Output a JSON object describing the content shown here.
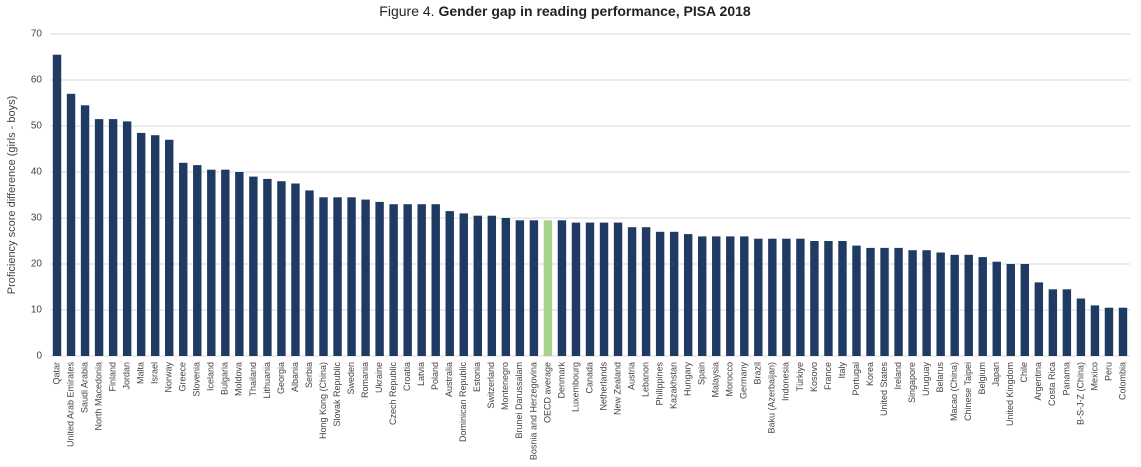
{
  "chart_data": {
    "type": "bar",
    "title_label": "Figure 4.",
    "title": "Gender gap in reading performance, PISA 2018",
    "y_label": "Proficiency score difference (girls - boys)",
    "categories": [
      "Qatar",
      "United Arab Emirates",
      "Saudi Arabia",
      "North Macedonia",
      "Finland",
      "Jordan",
      "Malta",
      "Israel",
      "Norway",
      "Greece",
      "Slovenia",
      "Iceland",
      "Bulgaria",
      "Moldova",
      "Thailand",
      "Lithuania",
      "Georgia",
      "Albania",
      "Serbia",
      "Hong Kong (China)",
      "Slovak Republic",
      "Sweden",
      "Romania",
      "Ukraine",
      "Czech Republic",
      "Croatia",
      "Latvia",
      "Poland",
      "Australia",
      "Dominican Republic",
      "Estonia",
      "Switzerland",
      "Montenegro",
      "Brunei Darussalam",
      "Bosnia and Herzegovina",
      "OECD average",
      "Denmark",
      "Luxembourg",
      "Canada",
      "Netherlands",
      "New Zealand",
      "Austria",
      "Lebanon",
      "Philippines",
      "Kazakhstan",
      "Hungary",
      "Spain",
      "Malaysia",
      "Morocco",
      "Germany",
      "Brazil",
      "Baku (Azerbaijan)",
      "Indonesia",
      "Türkiye",
      "Kosovo",
      "France",
      "Italy",
      "Portugal",
      "Korea",
      "United States",
      "Ireland",
      "Singapore",
      "Uruguay",
      "Belarus",
      "Macao (China)",
      "Chinese Taipei",
      "Belgium",
      "Japan",
      "United Kingdom",
      "Chile",
      "Argentina",
      "Costa Rica",
      "Panama",
      "B-S-J-Z (China)",
      "Mexico",
      "Peru",
      "Colombia"
    ],
    "values": [
      65.5,
      57,
      54.5,
      51.5,
      51.5,
      51,
      48.5,
      48,
      47,
      42,
      41.5,
      40.5,
      40.5,
      40,
      39,
      38.5,
      38,
      37.5,
      36,
      34.5,
      34.5,
      34.5,
      34,
      33.5,
      33,
      33,
      33,
      33,
      31.5,
      31,
      30.5,
      30.5,
      30,
      29.5,
      29.5,
      29.5,
      29.5,
      29,
      29,
      29,
      29,
      28,
      28,
      27,
      27,
      26.5,
      26,
      26,
      26,
      26,
      25.5,
      25.5,
      25.5,
      25.5,
      25,
      25,
      25,
      24,
      23.5,
      23.5,
      23.5,
      23,
      23,
      22.5,
      22,
      22,
      21.5,
      20.5,
      20,
      20,
      16,
      14.5,
      14.5,
      12.5,
      11,
      10.5,
      10.5
    ],
    "colors": [
      "#1f3b63",
      "#1f3b63",
      "#1f3b63",
      "#1f3b63",
      "#1f3b63",
      "#1f3b63",
      "#1f3b63",
      "#1f3b63",
      "#1f3b63",
      "#1f3b63",
      "#1f3b63",
      "#1f3b63",
      "#1f3b63",
      "#1f3b63",
      "#1f3b63",
      "#1f3b63",
      "#1f3b63",
      "#1f3b63",
      "#1f3b63",
      "#1f3b63",
      "#1f3b63",
      "#1f3b63",
      "#1f3b63",
      "#1f3b63",
      "#1f3b63",
      "#1f3b63",
      "#1f3b63",
      "#1f3b63",
      "#1f3b63",
      "#1f3b63",
      "#1f3b63",
      "#1f3b63",
      "#1f3b63",
      "#1f3b63",
      "#1f3b63",
      "#a9d18e",
      "#1f3b63",
      "#1f3b63",
      "#1f3b63",
      "#1f3b63",
      "#1f3b63",
      "#1f3b63",
      "#1f3b63",
      "#1f3b63",
      "#1f3b63",
      "#1f3b63",
      "#1f3b63",
      "#1f3b63",
      "#1f3b63",
      "#1f3b63",
      "#1f3b63",
      "#1f3b63",
      "#1f3b63",
      "#1f3b63",
      "#1f3b63",
      "#1f3b63",
      "#1f3b63",
      "#1f3b63",
      "#1f3b63",
      "#1f3b63",
      "#1f3b63",
      "#1f3b63",
      "#1f3b63",
      "#1f3b63",
      "#1f3b63",
      "#1f3b63",
      "#1f3b63",
      "#1f3b63",
      "#1f3b63",
      "#1f3b63",
      "#1f3b63",
      "#1f3b63",
      "#1f3b63",
      "#1f3b63",
      "#1f3b63",
      "#1f3b63",
      "#1f3b63"
    ],
    "ylim": [
      0,
      70
    ],
    "yticks": [
      0,
      10,
      20,
      30,
      40,
      50,
      60,
      70
    ],
    "grid": true
  }
}
